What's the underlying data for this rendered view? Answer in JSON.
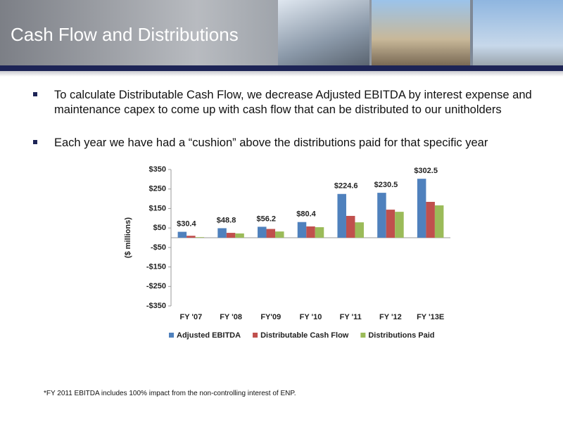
{
  "slide": {
    "title": "Cash Flow and Distributions",
    "bullets": [
      "To calculate Distributable Cash Flow, we decrease Adjusted EBITDA by interest expense and maintenance capex to come up with cash flow that can be distributed to our unitholders",
      "Each year we have had a “cushion” above the distributions paid for that specific year"
    ],
    "footnote": "*FY 2011 EBITDA includes 100% impact from the non-controlling interest of ENP."
  },
  "chart_data": {
    "type": "bar",
    "y_label": "($ millions)",
    "categories": [
      "FY '07",
      "FY '08",
      "FY'09",
      "FY '10",
      "FY '11",
      "FY '12",
      "FY '13E"
    ],
    "series": [
      {
        "name": "Adjusted EBITDA",
        "color": "#4f81bd",
        "values": [
          30.4,
          48.8,
          56.2,
          80.4,
          224.6,
          230.5,
          302.5
        ],
        "value_labels": [
          "$30.4",
          "$48.8",
          "$56.2",
          "$80.4",
          "$224.6",
          "$230.5",
          "$302.5"
        ]
      },
      {
        "name": "Distributable Cash Flow",
        "color": "#c0504d",
        "values": [
          10,
          25,
          45,
          58,
          112,
          144,
          184
        ]
      },
      {
        "name": "Distributions Paid",
        "color": "#9bbb59",
        "values": [
          3,
          22,
          32,
          54,
          79,
          133,
          166
        ]
      }
    ],
    "ylim": [
      -350,
      350
    ],
    "yticks": [
      {
        "value": 350,
        "label": "$350"
      },
      {
        "value": 250,
        "label": "$250"
      },
      {
        "value": 150,
        "label": "$150"
      },
      {
        "value": 50,
        "label": "$50"
      },
      {
        "value": -50,
        "label": "-$50"
      },
      {
        "value": -150,
        "label": "-$150"
      },
      {
        "value": -250,
        "label": "-$250"
      },
      {
        "value": -350,
        "label": "-$350"
      }
    ],
    "legend": "bottom"
  }
}
